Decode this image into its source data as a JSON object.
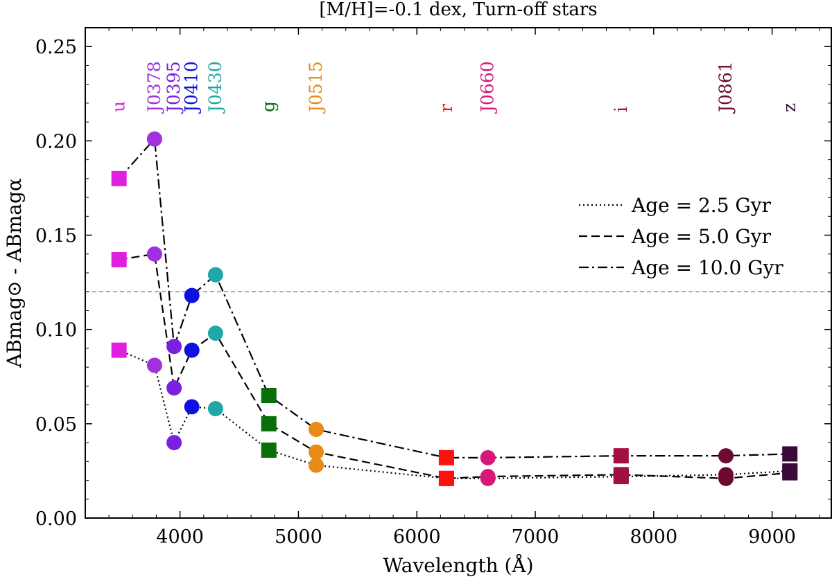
{
  "chart_data": {
    "type": "line",
    "title": "[M/H]=-0.1 dex, Turn-off stars",
    "xlabel": "Wavelength (Å)",
    "ylabel": "ABmag⊙ - ABmagα",
    "xlim": [
      3200,
      9500
    ],
    "ylim": [
      0.0,
      0.26
    ],
    "xticks": [
      4000,
      5000,
      6000,
      7000,
      8000,
      9000
    ],
    "yticks": [
      0.0,
      0.05,
      0.1,
      0.15,
      0.2,
      0.25
    ],
    "ytick_labels": [
      "0.00",
      "0.05",
      "0.10",
      "0.15",
      "0.20",
      "0.25"
    ],
    "xtick_labels": [
      "4000",
      "5000",
      "6000",
      "7000",
      "8000",
      "9000"
    ],
    "reference_line": {
      "y": 0.12,
      "style": "dashed",
      "color": "#888888"
    },
    "filters": [
      {
        "name": "u",
        "wavelength": 3485,
        "marker": "square",
        "color": "#e020e0"
      },
      {
        "name": "J0378",
        "wavelength": 3785,
        "marker": "circle",
        "color": "#a030e0"
      },
      {
        "name": "J0395",
        "wavelength": 3950,
        "marker": "circle",
        "color": "#7a20e0"
      },
      {
        "name": "J0410",
        "wavelength": 4100,
        "marker": "circle",
        "color": "#1010e0"
      },
      {
        "name": "J0430",
        "wavelength": 4300,
        "marker": "circle",
        "color": "#20a8a8"
      },
      {
        "name": "g",
        "wavelength": 4750,
        "marker": "square",
        "color": "#0a6e0a"
      },
      {
        "name": "J0515",
        "wavelength": 5150,
        "marker": "circle",
        "color": "#e88a18"
      },
      {
        "name": "r",
        "wavelength": 6250,
        "marker": "square",
        "color": "#ff1010"
      },
      {
        "name": "J0660",
        "wavelength": 6600,
        "marker": "circle",
        "color": "#d81878"
      },
      {
        "name": "i",
        "wavelength": 7725,
        "marker": "square",
        "color": "#a01040"
      },
      {
        "name": "J0861",
        "wavelength": 8610,
        "marker": "circle",
        "color": "#6e0a30"
      },
      {
        "name": "z",
        "wavelength": 9150,
        "marker": "square",
        "color": "#3a0a3a"
      }
    ],
    "series": [
      {
        "name": "Age = 2.5 Gyr",
        "linestyle": "dotted",
        "values": [
          0.089,
          0.081,
          0.04,
          0.059,
          0.058,
          0.036,
          0.028,
          0.021,
          0.021,
          0.022,
          0.023,
          0.025
        ]
      },
      {
        "name": "Age = 5.0 Gyr",
        "linestyle": "dashed",
        "values": [
          0.137,
          0.14,
          0.069,
          0.089,
          0.098,
          0.05,
          0.035,
          0.021,
          0.022,
          0.023,
          0.021,
          0.024
        ]
      },
      {
        "name": "Age = 10.0 Gyr",
        "linestyle": "dashdot",
        "values": [
          0.18,
          0.201,
          0.091,
          0.118,
          0.129,
          0.065,
          0.047,
          0.032,
          0.032,
          0.033,
          0.033,
          0.034
        ]
      }
    ],
    "legend": {
      "position": "right"
    }
  }
}
